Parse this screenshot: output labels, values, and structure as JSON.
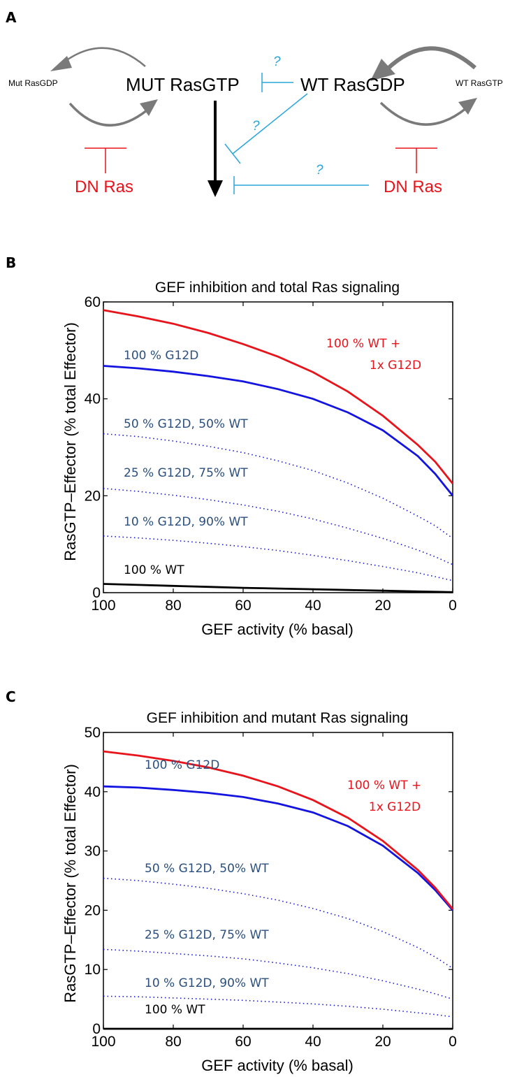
{
  "panel_letters": {
    "a": "A",
    "b": "B",
    "c": "C"
  },
  "colors": {
    "red": "#e8141c",
    "blue": "#1414e0",
    "cyan": "#2aa6dc",
    "gray": "#7a7a7a",
    "navy": "#2b4f7e",
    "black": "#000000"
  },
  "diagram": {
    "mut_rasgdp": "Mut RasGDP",
    "mut_rasgtp": "MUT RasGTP",
    "wt_rasgdp": "WT RasGDP",
    "wt_rasgtp": "WT RasGTP",
    "dn_ras_left": "DN Ras",
    "dn_ras_right": "DN Ras",
    "question_1": "?",
    "question_2": "?",
    "question_3": "?"
  },
  "chart_data": [
    {
      "type": "line",
      "title": "GEF inhibition and total Ras signaling",
      "xlabel": "GEF activity (% basal)",
      "ylabel": "RasGTP–Effector (% total Effector)",
      "xlim": [
        100,
        0
      ],
      "ylim": [
        0,
        60
      ],
      "x_ticks": [
        100,
        80,
        60,
        40,
        20,
        0
      ],
      "y_ticks": [
        0,
        20,
        40,
        60
      ],
      "x": [
        100,
        90,
        80,
        70,
        60,
        50,
        40,
        30,
        20,
        10,
        5,
        0
      ],
      "series": [
        {
          "name": "100 % WT + 1x G12D",
          "values": [
            58.3,
            57.0,
            55.5,
            53.6,
            51.3,
            48.7,
            45.5,
            41.5,
            36.5,
            30.5,
            27.0,
            22.5
          ],
          "color": "red",
          "style": "solid"
        },
        {
          "name": "100 % G12D",
          "values": [
            46.8,
            46.3,
            45.6,
            44.7,
            43.6,
            42.0,
            40.0,
            37.2,
            33.5,
            28.2,
            24.5,
            20.0
          ],
          "color": "blue",
          "style": "solid"
        },
        {
          "name": "50 % G12D, 50% WT",
          "values": [
            32.8,
            32.2,
            31.3,
            30.2,
            28.9,
            27.2,
            25.2,
            22.6,
            19.5,
            15.8,
            13.8,
            11.2
          ],
          "color": "blue",
          "style": "dotted"
        },
        {
          "name": "25 % G12D, 75% WT",
          "values": [
            21.5,
            20.9,
            20.1,
            19.2,
            18.1,
            16.8,
            15.2,
            13.3,
            11.2,
            8.8,
            7.4,
            5.8
          ],
          "color": "blue",
          "style": "dotted"
        },
        {
          "name": "10 % G12D, 90% WT",
          "values": [
            11.7,
            11.3,
            10.8,
            10.2,
            9.5,
            8.7,
            7.7,
            6.6,
            5.4,
            4.1,
            3.3,
            2.5
          ],
          "color": "blue",
          "style": "dotted"
        },
        {
          "name": "100 % WT",
          "values": [
            1.8,
            1.6,
            1.4,
            1.2,
            1.0,
            0.85,
            0.7,
            0.55,
            0.4,
            0.25,
            0.18,
            0.1
          ],
          "color": "black",
          "style": "solid"
        }
      ],
      "annotations": [
        {
          "text": "100 % WT +",
          "color": "red"
        },
        {
          "text": "1x G12D",
          "color": "red"
        },
        {
          "text": "100 % G12D",
          "color": "navy"
        },
        {
          "text": "50 % G12D, 50% WT",
          "color": "navy"
        },
        {
          "text": "25 % G12D, 75% WT",
          "color": "navy"
        },
        {
          "text": "10 % G12D, 90% WT",
          "color": "navy"
        },
        {
          "text": "100 % WT",
          "color": "black"
        }
      ]
    },
    {
      "type": "line",
      "title": "GEF inhibition and mutant Ras signaling",
      "xlabel": "GEF activity (% basal)",
      "ylabel": "RasGTP–Effector (% total Effector)",
      "xlim": [
        100,
        0
      ],
      "ylim": [
        0,
        50
      ],
      "x_ticks": [
        100,
        80,
        60,
        40,
        20,
        0
      ],
      "y_ticks": [
        0,
        10,
        20,
        30,
        40,
        50
      ],
      "x": [
        100,
        90,
        80,
        70,
        60,
        50,
        40,
        30,
        20,
        10,
        5,
        0
      ],
      "series": [
        {
          "name": "100 % WT + 1x G12D",
          "values": [
            46.8,
            46.1,
            45.2,
            44.1,
            42.7,
            40.9,
            38.6,
            35.6,
            31.7,
            26.8,
            23.8,
            20.2
          ],
          "color": "red",
          "style": "solid"
        },
        {
          "name": "100 % G12D",
          "values": [
            40.9,
            40.7,
            40.3,
            39.8,
            39.1,
            38.0,
            36.5,
            34.2,
            30.9,
            26.3,
            23.4,
            20.0
          ],
          "color": "blue",
          "style": "solid"
        },
        {
          "name": "50 % G12D, 50% WT",
          "values": [
            25.4,
            25.0,
            24.4,
            23.7,
            22.8,
            21.7,
            20.3,
            18.6,
            16.4,
            13.7,
            12.1,
            10.2
          ],
          "color": "blue",
          "style": "dotted"
        },
        {
          "name": "25 % G12D, 75% WT",
          "values": [
            13.4,
            13.1,
            12.7,
            12.3,
            11.8,
            11.1,
            10.3,
            9.3,
            8.1,
            6.7,
            5.9,
            5.0
          ],
          "color": "blue",
          "style": "dotted"
        },
        {
          "name": "10 % G12D, 90% WT",
          "values": [
            5.5,
            5.4,
            5.2,
            5.0,
            4.8,
            4.5,
            4.2,
            3.8,
            3.3,
            2.7,
            2.4,
            2.0
          ],
          "color": "blue",
          "style": "dotted"
        },
        {
          "name": "100 % WT",
          "values": [
            0,
            0,
            0,
            0,
            0,
            0,
            0,
            0,
            0,
            0,
            0,
            0
          ],
          "color": "black",
          "style": "solid"
        }
      ],
      "annotations": [
        {
          "text": "100 % WT +",
          "color": "red"
        },
        {
          "text": "1x G12D",
          "color": "red"
        },
        {
          "text": "100 % G12D",
          "color": "navy"
        },
        {
          "text": "50 % G12D, 50% WT",
          "color": "navy"
        },
        {
          "text": "25 % G12D, 75% WT",
          "color": "navy"
        },
        {
          "text": "10 % G12D, 90% WT",
          "color": "navy"
        },
        {
          "text": "100 % WT",
          "color": "black"
        }
      ]
    }
  ]
}
